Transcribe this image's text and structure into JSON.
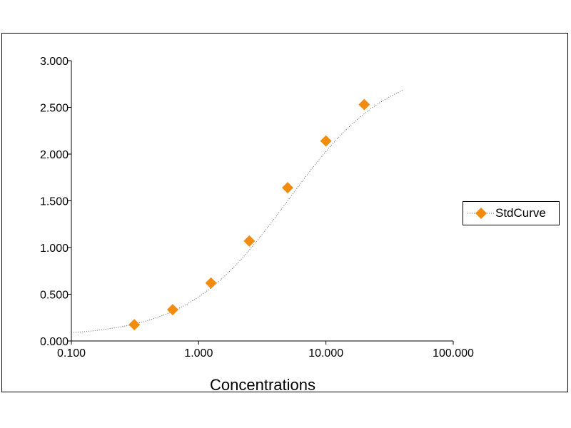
{
  "chart_data": {
    "type": "scatter",
    "title": "",
    "xlabel": "Concentrations",
    "ylabel": "",
    "x_scale": "log",
    "xlim": [
      0.1,
      100
    ],
    "ylim": [
      0,
      3
    ],
    "x_ticks": [
      0.1,
      1,
      10,
      100
    ],
    "x_tick_labels": [
      "0.100",
      "1.000",
      "10.000",
      "100.000"
    ],
    "y_ticks": [
      0,
      0.5,
      1,
      1.5,
      2,
      2.5,
      3
    ],
    "y_tick_labels": [
      "0.000",
      "0.500",
      "1.000",
      "1.500",
      "2.000",
      "2.500",
      "3.000"
    ],
    "grid": false,
    "legend": "right",
    "series": [
      {
        "name": "StdCurve",
        "marker": "diamond",
        "color": "#f28c0f",
        "fit_line": "dotted",
        "fit_range": [
          0.1,
          40
        ],
        "points": [
          {
            "x": 0.3125,
            "y": 0.175
          },
          {
            "x": 0.625,
            "y": 0.335
          },
          {
            "x": 1.25,
            "y": 0.62
          },
          {
            "x": 2.5,
            "y": 1.07
          },
          {
            "x": 5,
            "y": 1.64
          },
          {
            "x": 10,
            "y": 2.14
          },
          {
            "x": 20,
            "y": 2.53
          }
        ]
      }
    ]
  }
}
